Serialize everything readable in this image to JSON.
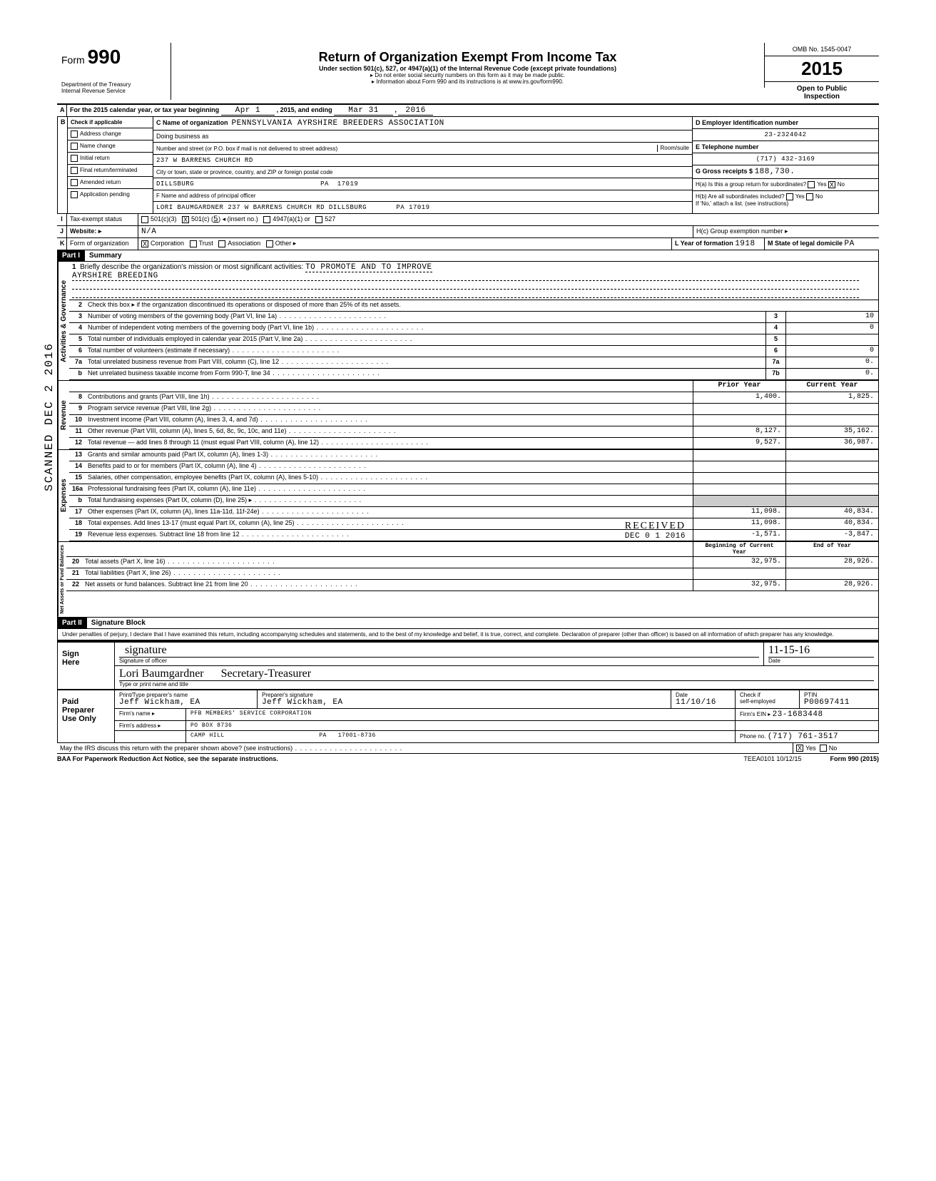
{
  "header": {
    "form_label": "Form",
    "form_number": "990",
    "dept": "Department of the Treasury\nInternal Revenue Service",
    "title": "Return of Organization Exempt From Income Tax",
    "subtitle": "Under section 501(c), 527, or 4947(a)(1) of the Internal Revenue Code (except private foundations)",
    "note1": "▸ Do not enter social security numbers on this form as it may be made public.",
    "note2": "▸ Information about Form 990 and its instructions is at www.irs.gov/form990.",
    "omb": "OMB No. 1545-0047",
    "year": "2015",
    "open": "Open to Public\nInspection"
  },
  "lineA": {
    "text_a": "For the 2015 calendar year, or tax year beginning",
    "begin": "Apr 1",
    "mid": ", 2015, and ending",
    "end": "Mar 31",
    "mid2": ",",
    "year2": "2016"
  },
  "colB": {
    "header": "Check if applicable",
    "items": [
      "Address change",
      "Name change",
      "Initial return",
      "Final return/terminated",
      "Amended return",
      "Application pending"
    ]
  },
  "colC": {
    "label_c": "C  Name of organization",
    "org": "PENNSYLVANIA AYRSHIRE BREEDERS ASSOCIATION",
    "dba_label": "Doing business as",
    "street_label": "Number and street (or P.O. box if mail is not delivered to street address)",
    "room_label": "Room/suite",
    "street": "237 W BARRENS CHURCH RD",
    "city_label": "City or town, state or province, country, and ZIP or foreign postal code",
    "city": "DILLSBURG                              PA  17019",
    "officer_label": "F  Name and address of principal officer",
    "officer": "LORI BAUMGARDNER 237 W BARRENS CHURCH RD DILLSBURG       PA 17019"
  },
  "colD": {
    "d_label": "D  Employer Identification number",
    "ein": "23-2324042",
    "e_label": "E  Telephone number",
    "phone": "(717) 432-3169",
    "g_label": "G  Gross receipts $",
    "g_val": "188,730.",
    "h_a": "H(a) Is this a group return for subordinates?",
    "h_b": "H(b) Are all subordinates included?",
    "h_b2": "If 'No,' attach a list. (see instructions)",
    "yes": "Yes",
    "no": "No"
  },
  "lineI": {
    "label": "Tax-exempt status",
    "c3": "501(c)(3)",
    "c": "501(c) (",
    "cnum": "5",
    "cend": ") ◂  (insert no.)",
    "a": "4947(a)(1) or",
    "s": "527"
  },
  "lineJ": {
    "label": "Website: ▸",
    "val": "N/A",
    "hc": "H(c) Group exemption number ▸"
  },
  "lineK": {
    "label": "Form of organization",
    "corp": "Corporation",
    "trust": "Trust",
    "assoc": "Association",
    "other": "Other ▸",
    "l": "L Year of formation",
    "lv": "1918",
    "m": "M State of legal domicile",
    "mv": "PA"
  },
  "part1": {
    "label": "Part I",
    "title": "Summary",
    "q1a": "Briefly describe the organization's mission or most significant activities:",
    "q1b": "TO PROMOTE AND TO IMPROVE",
    "q1c": "AYRSHIRE BREEDING",
    "q2": "Check this box ▸        if the organization discontinued its operations or disposed of more than 25% of its net assets.",
    "rows_gov": [
      {
        "n": "3",
        "t": "Number of voting members of the governing body (Part VI, line 1a)",
        "b": "3",
        "v": "10"
      },
      {
        "n": "4",
        "t": "Number of independent voting members of the governing body (Part VI, line 1b)",
        "b": "4",
        "v": "0"
      },
      {
        "n": "5",
        "t": "Total number of individuals employed in calendar year 2015 (Part V, line 2a)",
        "b": "5",
        "v": ""
      },
      {
        "n": "6",
        "t": "Total number of volunteers (estimate if necessary)",
        "b": "6",
        "v": "0"
      },
      {
        "n": "7a",
        "t": "Total unrelated business revenue from Part VIII, column (C), line 12",
        "b": "7a",
        "v": "0."
      },
      {
        "n": "b",
        "t": "Net unrelated business taxable income from Form 990-T, line 34",
        "b": "7b",
        "v": "0."
      }
    ],
    "col_py": "Prior Year",
    "col_cy": "Current Year",
    "rows_rev": [
      {
        "n": "8",
        "t": "Contributions and grants (Part VIII, line 1h)",
        "py": "1,400.",
        "cy": "1,825."
      },
      {
        "n": "9",
        "t": "Program service revenue (Part VIII, line 2g)",
        "py": "",
        "cy": ""
      },
      {
        "n": "10",
        "t": "Investment income (Part VIII, column (A), lines 3, 4, and 7d)",
        "py": "",
        "cy": ""
      },
      {
        "n": "11",
        "t": "Other revenue (Part VIII, column (A), lines 5, 6d, 8c, 9c, 10c, and 11e)",
        "py": "8,127.",
        "cy": "35,162."
      },
      {
        "n": "12",
        "t": "Total revenue — add lines 8 through 11 (must equal Part VIII, column (A), line 12)",
        "py": "9,527.",
        "cy": "36,987."
      }
    ],
    "rows_exp": [
      {
        "n": "13",
        "t": "Grants and similar amounts paid (Part IX, column (A), lines 1-3)",
        "py": "",
        "cy": ""
      },
      {
        "n": "14",
        "t": "Benefits paid to or for members (Part IX, column (A), line 4)",
        "py": "",
        "cy": ""
      },
      {
        "n": "15",
        "t": "Salaries, other compensation, employee benefits (Part IX, column (A), lines 5-10)",
        "py": "",
        "cy": ""
      },
      {
        "n": "16a",
        "t": "Professional fundraising fees (Part IX, column (A), line 11e)",
        "py": "",
        "cy": ""
      },
      {
        "n": "b",
        "t": "Total fundraising expenses (Part IX, column (D), line 25) ▸",
        "py": "shade",
        "cy": "shade"
      },
      {
        "n": "17",
        "t": "Other expenses (Part IX, column (A), lines 11a-11d, 11f-24e)",
        "py": "11,098.",
        "cy": "40,834."
      },
      {
        "n": "18",
        "t": "Total expenses. Add lines 13-17 (must equal Part IX, column (A), line 25)",
        "py": "11,098.",
        "cy": "40,834."
      },
      {
        "n": "19",
        "t": "Revenue less expenses. Subtract line 18 from line 12",
        "py": "-1,571.",
        "cy": "-3,847."
      }
    ],
    "col_boy": "Beginning of Current Year",
    "col_eoy": "End of Year",
    "rows_net": [
      {
        "n": "20",
        "t": "Total assets (Part X, line 16)",
        "py": "32,975.",
        "cy": "28,926."
      },
      {
        "n": "21",
        "t": "Total liabilities (Part X, line 26)",
        "py": "",
        "cy": ""
      },
      {
        "n": "22",
        "t": "Net assets or fund balances. Subtract line 21 from line 20",
        "py": "32,975.",
        "cy": "28,926."
      }
    ],
    "side_gov": "Activities & Governance",
    "side_rev": "Revenue",
    "side_exp": "Expenses",
    "side_net": "Net Assets or\nFund Balances"
  },
  "part2": {
    "label": "Part II",
    "title": "Signature Block",
    "declare": "Under penalties of perjury, I declare that I have examined this return, including accompanying schedules and statements, and to the best of my knowledge and belief, it is true, correct, and complete. Declaration of preparer (other than officer) is based on all information of which preparer has any knowledge.",
    "sign": "Sign\nHere",
    "sig_officer": "Signature of officer",
    "date": "Date",
    "date_val": "11-15-16",
    "name_title": "Type or print name and title",
    "name_script": "Lori Baumgardner      Secretary-Treasurer",
    "paid": "Paid\nPreparer\nUse Only",
    "prep_name_l": "Print/Type preparer's name",
    "prep_name": "Jeff Wickham, EA",
    "prep_sig_l": "Preparer's signature",
    "prep_sig": "Jeff Wickham, EA",
    "prep_date_l": "Date",
    "prep_date": "11/10/16",
    "check_l": "Check        if\nself-employed",
    "ptin_l": "PTIN",
    "ptin": "P00697411",
    "firm_l": "Firm's name    ▸",
    "firm": "PFB MEMBERS' SERVICE CORPORATION",
    "fein_l": "Firm's EIN ▸",
    "fein": "23-1683448",
    "addr_l": "Firm's address ▸",
    "addr1": "PO BOX 8736",
    "addr2": "CAMP HILL                         PA   17001-8736",
    "phone_l": "Phone no.",
    "phone": "(717) 761-3517",
    "discuss": "May the IRS discuss this return with the preparer shown above? (see instructions)",
    "yes": "Yes",
    "no": "No"
  },
  "footer": {
    "baa": "BAA  For Paperwork Reduction Act Notice, see the separate instructions.",
    "mid": "TEEA0101  10/12/15",
    "right": "Form 990 (2015)"
  },
  "stamps": {
    "scanned": "SCANNED DEC 2 2016",
    "received": "RECEIVED",
    "recdate": "DEC 0 1 2016"
  }
}
